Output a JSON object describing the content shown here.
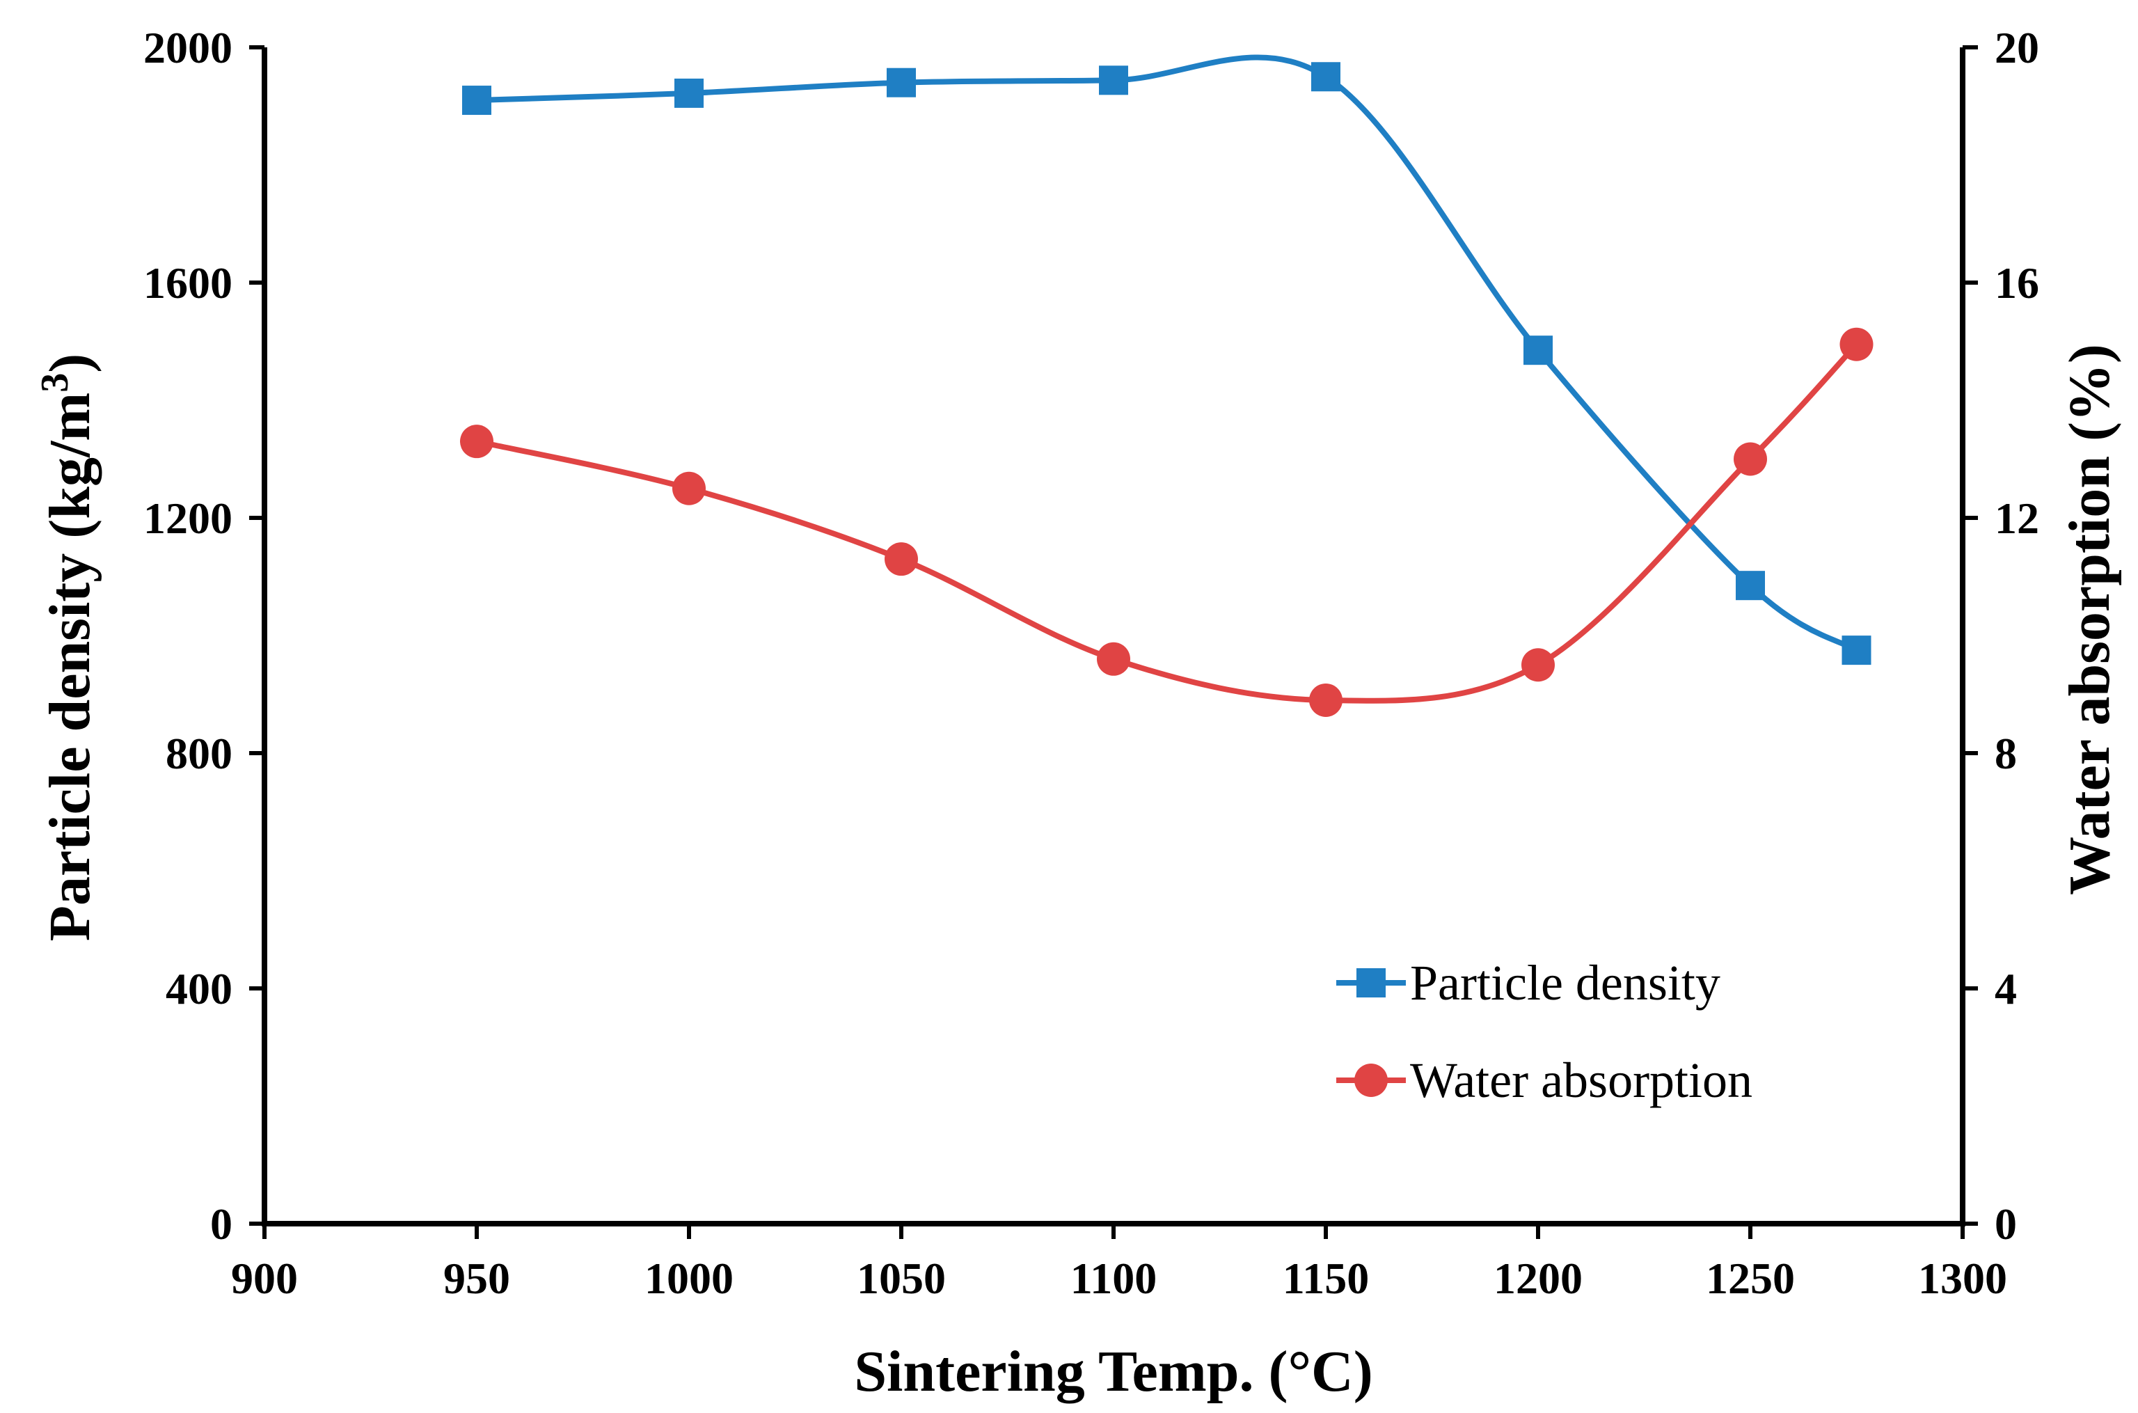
{
  "chart_data": {
    "type": "line",
    "x": [
      950,
      1000,
      1050,
      1100,
      1150,
      1200,
      1250,
      1275
    ],
    "xlabel": "Sintering Temp. (°C)",
    "ylabel_left": "Particle density (kg/m",
    "ylabel_left_sup": "3",
    "ylabel_left_close": ")",
    "ylabel_right": "Water absorption (%)",
    "xlim": [
      900,
      1300
    ],
    "ylim_left": [
      0,
      2000
    ],
    "ylim_right": [
      0,
      20
    ],
    "x_ticks": [
      "900",
      "950",
      "1000",
      "1050",
      "1100",
      "1150",
      "1200",
      "1250",
      "1300"
    ],
    "y_left_ticks": [
      "0",
      "400",
      "800",
      "1200",
      "1600",
      "2000"
    ],
    "y_right_ticks": [
      "0",
      "4",
      "8",
      "12",
      "16",
      "20"
    ],
    "grid": false,
    "legend_position": "bottom-right",
    "series": [
      {
        "name": "Particle density",
        "axis": "left",
        "marker": "square",
        "color": "#1f7fc4",
        "values": [
          1910,
          1922,
          1940,
          1944,
          1950,
          1485,
          1085,
          975
        ]
      },
      {
        "name": "Water absorption",
        "axis": "right",
        "marker": "circle",
        "color": "#e04444",
        "values": [
          13.3,
          12.5,
          11.3,
          9.6,
          8.9,
          9.5,
          13.0,
          14.95
        ]
      }
    ]
  }
}
